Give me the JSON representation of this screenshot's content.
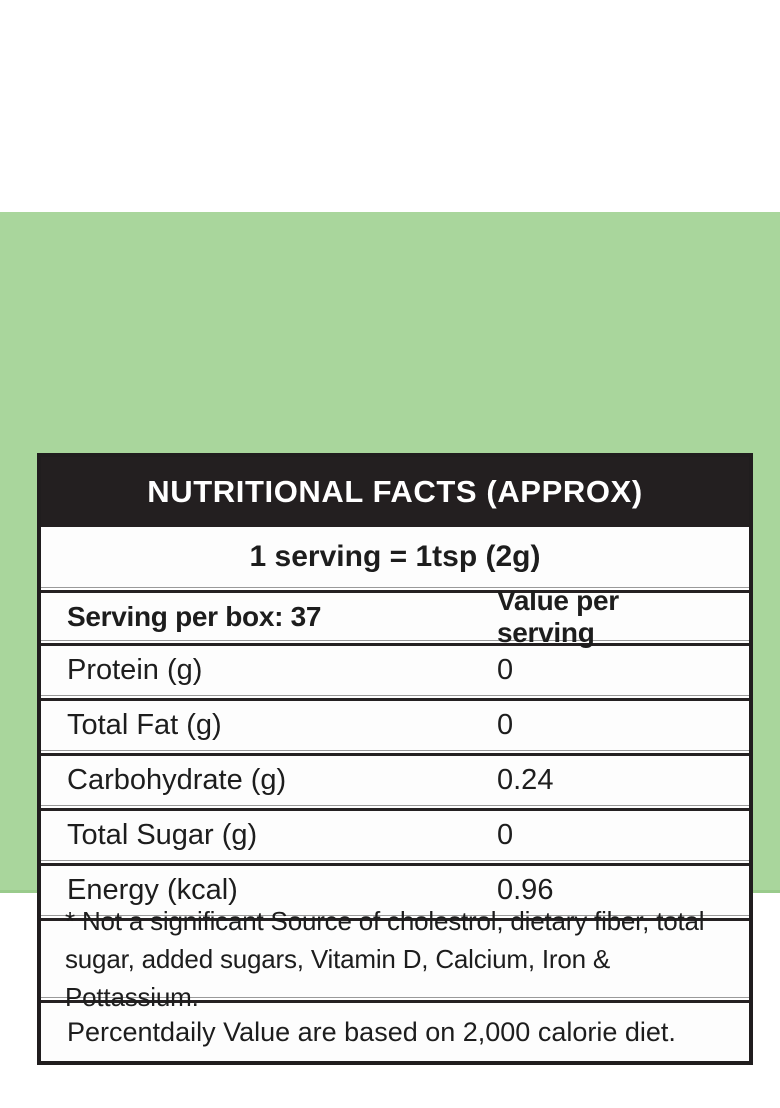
{
  "label": {
    "title": "NUTRITIONAL FACTS (APPROX)",
    "serving_line": "1 serving = 1tsp (2g)",
    "columns": {
      "left": "Serving per box: 37",
      "right": "Value per serving"
    },
    "rows": [
      {
        "label": "Protein (g)",
        "value": "0"
      },
      {
        "label": "Total Fat (g)",
        "value": "0"
      },
      {
        "label": "Carbohydrate (g)",
        "value": "0.24"
      },
      {
        "label": "Total Sugar (g)",
        "value": "0"
      },
      {
        "label": "Energy (kcal)",
        "value": "0.96"
      }
    ],
    "footnote_lines": [
      "* Not a significant Source of cholestrol, dietary fiber, total",
      "sugar, added sugars, Vitamin D, Calcium, Iron & Pottassium."
    ],
    "percent_note": "Percentdaily Value are based on 2,000 calorie diet.",
    "colors": {
      "background_green": "#a9d69c",
      "band_edge": "#9acb8c",
      "header_bg": "#231f20",
      "header_text": "#ffffff",
      "body_text": "#1d1d1d",
      "border": "#201d1e"
    }
  }
}
